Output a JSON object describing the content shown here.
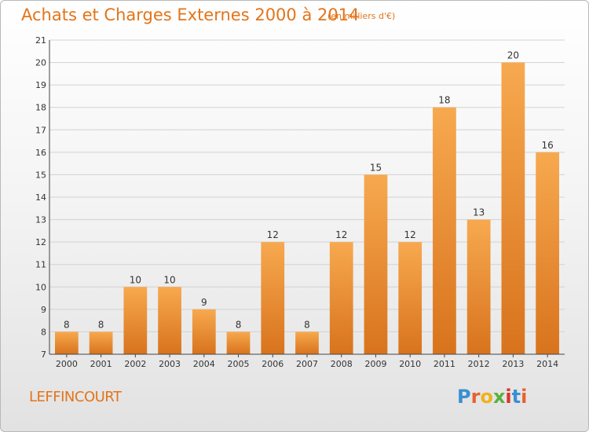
{
  "header": {
    "title": "Achats et Charges Externes 2000 à 2014",
    "subtitle": "(en milliers d'€)"
  },
  "footer": {
    "commune": "LEFFINCOURT",
    "logo_letters": [
      "P",
      "r",
      "o",
      "x",
      "i",
      "t",
      "i"
    ],
    "logo_colors": [
      "#3a8fd1",
      "#e8612c",
      "#f0b21a",
      "#5ab03c",
      "#d9342b",
      "#3a8fd1",
      "#e8612c"
    ]
  },
  "chart_data": {
    "type": "bar",
    "title": "Achats et Charges Externes 2000 à 2014",
    "subtitle": "(en milliers d'€)",
    "categories": [
      "2000",
      "2001",
      "2002",
      "2003",
      "2004",
      "2005",
      "2006",
      "2007",
      "2008",
      "2009",
      "2010",
      "2011",
      "2012",
      "2013",
      "2014"
    ],
    "values": [
      8,
      8,
      10,
      10,
      9,
      8,
      12,
      8,
      12,
      15,
      12,
      18,
      13,
      20,
      16
    ],
    "ylim": [
      7,
      21
    ],
    "yticks": [
      7,
      8,
      9,
      10,
      11,
      12,
      13,
      14,
      15,
      16,
      17,
      18,
      19,
      20,
      21
    ],
    "grid": true,
    "bar_color_light": "#f7a94f",
    "bar_color_dark": "#d8731d"
  }
}
